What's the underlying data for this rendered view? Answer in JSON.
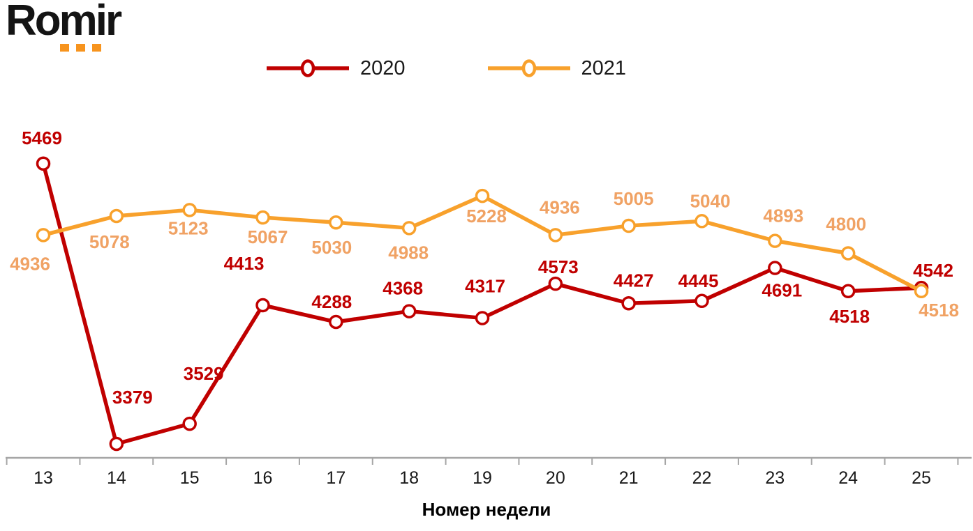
{
  "logo": {
    "text": "Romir"
  },
  "brand": {
    "logo_orange": "#F7941E",
    "logo_text_color": "#141414",
    "axis_color": "#A6A6A6"
  },
  "chart_data": {
    "type": "line",
    "title": "",
    "xlabel": "Номер недели",
    "ylabel": "",
    "categories": [
      "13",
      "14",
      "15",
      "16",
      "17",
      "18",
      "19",
      "20",
      "21",
      "22",
      "23",
      "24",
      "25"
    ],
    "series": [
      {
        "name": "2020",
        "color": "#C00000",
        "label_color": "#C00000",
        "values": [
          5469,
          3379,
          3529,
          4413,
          4288,
          4368,
          4317,
          4573,
          4427,
          4445,
          4691,
          4518,
          4542
        ],
        "label_offsets": [
          [
            -2,
            -37
          ],
          [
            23,
            -67
          ],
          [
            20,
            -72
          ],
          [
            -27,
            -60
          ],
          [
            -6,
            -29
          ],
          [
            -9,
            -33
          ],
          [
            4,
            -46
          ],
          [
            4,
            -24
          ],
          [
            7,
            -33
          ],
          [
            -5,
            -29
          ],
          [
            10,
            32
          ],
          [
            2,
            36
          ],
          [
            17,
            -25
          ]
        ]
      },
      {
        "name": "2021",
        "color": "#F8A12C",
        "label_color": "#F0A264",
        "values": [
          4936,
          5078,
          5123,
          5067,
          5030,
          4988,
          5228,
          4936,
          5005,
          5040,
          4893,
          4800,
          4518
        ],
        "label_offsets": [
          [
            -19,
            41
          ],
          [
            -10,
            37
          ],
          [
            -2,
            26
          ],
          [
            7,
            28
          ],
          [
            -6,
            36
          ],
          [
            -1,
            35
          ],
          [
            6,
            29
          ],
          [
            6,
            -40
          ],
          [
            7,
            -39
          ],
          [
            12,
            -29
          ],
          [
            12,
            -36
          ],
          [
            -3,
            -42
          ],
          [
            25,
            27
          ]
        ]
      }
    ],
    "ylim": [
      3280,
      5660
    ],
    "grid": false,
    "legend_position": "top",
    "marker": "open-circle",
    "data_labels": true
  }
}
